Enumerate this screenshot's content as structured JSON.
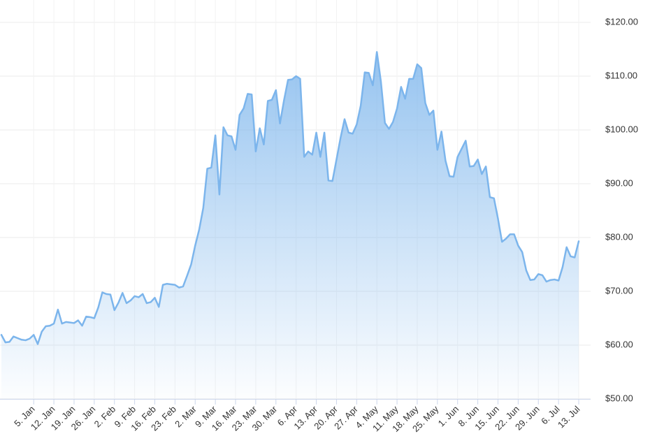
{
  "chart_data": {
    "type": "area",
    "color": "#7cb5ec",
    "grid": true,
    "ylim": [
      50,
      120
    ],
    "yticks": [
      {
        "value": 50,
        "label": "$50.00"
      },
      {
        "value": 60,
        "label": "$60.00"
      },
      {
        "value": 70,
        "label": "$70.00"
      },
      {
        "value": 80,
        "label": "$80.00"
      },
      {
        "value": 90,
        "label": "$90.00"
      },
      {
        "value": 100,
        "label": "$100.00"
      },
      {
        "value": 110,
        "label": "$110.00"
      },
      {
        "value": 120,
        "label": "$120.00"
      }
    ],
    "categories": [
      null,
      null,
      null,
      null,
      null,
      null,
      null,
      null,
      "5. Jan",
      null,
      null,
      null,
      null,
      "12. Jan",
      null,
      null,
      null,
      null,
      "19. Jan",
      null,
      null,
      null,
      null,
      "26. Jan",
      null,
      null,
      null,
      null,
      "2. Feb",
      null,
      null,
      null,
      null,
      "9. Feb",
      null,
      null,
      null,
      null,
      "16. Feb",
      null,
      null,
      null,
      null,
      "23. Feb",
      null,
      null,
      null,
      null,
      "2. Mar",
      null,
      null,
      null,
      null,
      "9. Mar",
      null,
      null,
      null,
      null,
      "16. Mar",
      null,
      null,
      null,
      null,
      "23. Mar",
      null,
      null,
      null,
      null,
      "30. Mar",
      null,
      null,
      null,
      null,
      "6. Apr",
      null,
      null,
      null,
      null,
      "13. Apr",
      null,
      null,
      null,
      null,
      "20. Apr",
      null,
      null,
      null,
      null,
      "27. Apr",
      null,
      null,
      null,
      null,
      "4. May",
      null,
      null,
      null,
      null,
      "11. May",
      null,
      null,
      null,
      null,
      "18. May",
      null,
      null,
      null,
      null,
      "25. May",
      null,
      null,
      null,
      null,
      "1. Jun",
      null,
      null,
      null,
      null,
      "8. Jun",
      null,
      null,
      null,
      null,
      "15. Jun",
      null,
      null,
      null,
      null,
      "22. Jun",
      null,
      null,
      null,
      null,
      "29. Jun",
      null,
      null,
      null,
      null,
      "6. Jul",
      null,
      null,
      null,
      null,
      "13. Jul"
    ],
    "values": [
      61.9,
      60.5,
      60.6,
      61.6,
      61.3,
      61.0,
      60.9,
      61.2,
      61.9,
      60.2,
      62.5,
      63.5,
      63.6,
      64.0,
      66.6,
      64.0,
      64.3,
      64.2,
      64.1,
      64.6,
      63.6,
      65.3,
      65.2,
      65.0,
      67.0,
      69.8,
      69.5,
      69.4,
      66.5,
      67.9,
      69.7,
      67.8,
      68.3,
      69.1,
      68.9,
      69.5,
      67.8,
      68.0,
      68.8,
      67.1,
      71.2,
      71.4,
      71.3,
      71.2,
      70.7,
      70.9,
      72.9,
      75.0,
      78.5,
      81.5,
      85.5,
      92.8,
      93.0,
      99.0,
      88.0,
      100.5,
      99.0,
      98.8,
      96.3,
      102.8,
      104.0,
      106.7,
      106.6,
      96.0,
      100.3,
      97.3,
      105.4,
      105.6,
      107.4,
      101.2,
      105.5,
      109.3,
      109.4,
      110.0,
      109.5,
      95.0,
      96.0,
      95.4,
      99.5,
      95.0,
      99.5,
      90.6,
      90.5,
      94.5,
      98.5,
      102.0,
      99.5,
      99.3,
      101.0,
      104.5,
      110.7,
      110.6,
      108.3,
      114.5,
      109.0,
      101.3,
      100.2,
      101.5,
      104.0,
      108.0,
      105.8,
      109.5,
      109.5,
      112.2,
      111.5,
      105.0,
      102.8,
      103.6,
      96.3,
      99.7,
      94.3,
      91.4,
      91.3,
      95.0,
      96.5,
      98.0,
      93.2,
      93.3,
      94.5,
      91.8,
      93.2,
      87.5,
      87.3,
      83.5,
      79.2,
      79.8,
      80.6,
      80.6,
      78.5,
      77.3,
      73.9,
      72.1,
      72.2,
      73.2,
      73.0,
      71.8,
      72.1,
      72.2,
      72.0,
      74.5,
      78.2,
      76.5,
      76.3,
      79.3
    ]
  }
}
